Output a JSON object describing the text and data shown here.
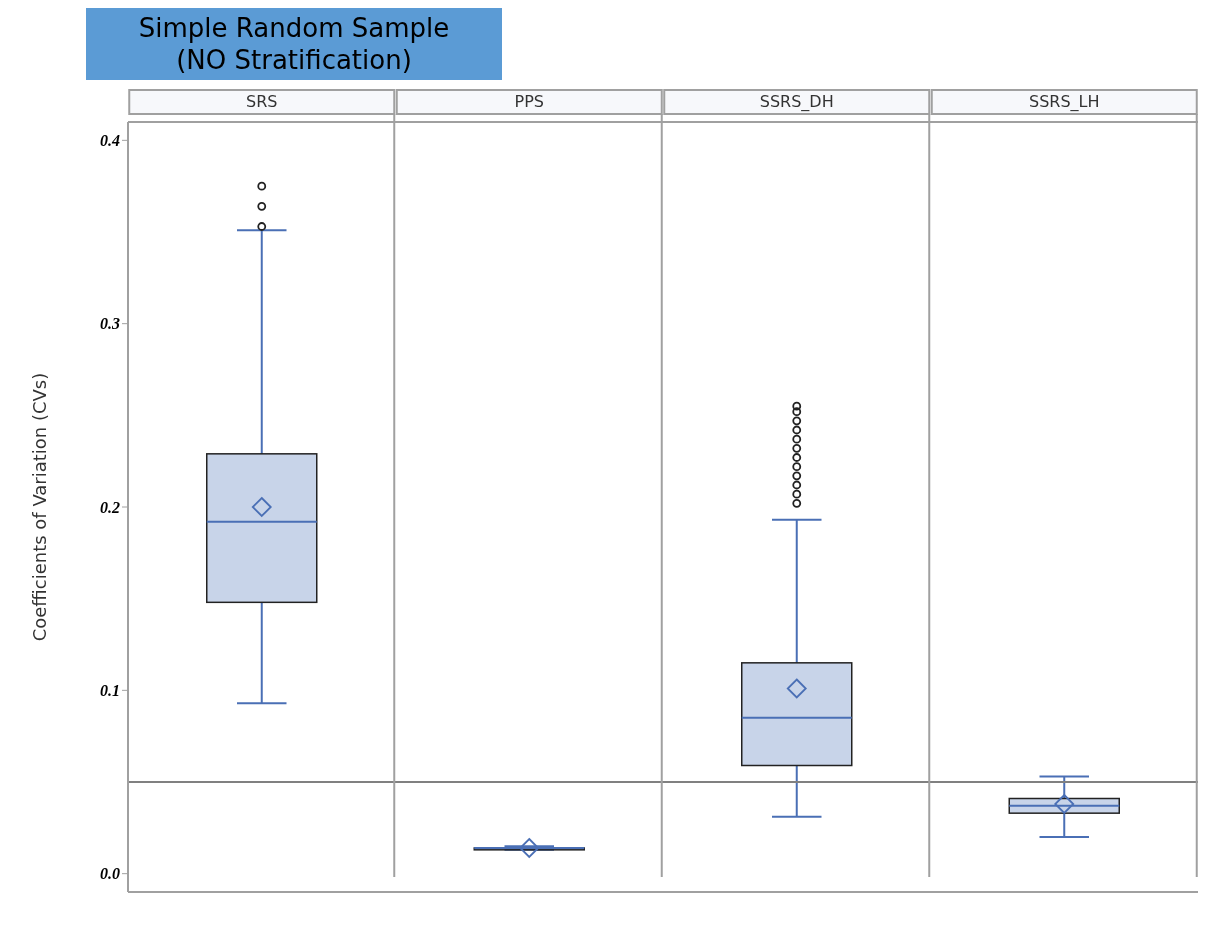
{
  "chart_data": {
    "type": "box",
    "title": "Simple Random Sample\n(NO Stratification)",
    "ylabel": "Coefficients of Variation (CVs)",
    "categories": [
      "SRS",
      "PPS",
      "SSRS_DH",
      "SSRS_LH"
    ],
    "color": "#4a6fb5",
    "boxes": [
      {
        "low": 0.093,
        "q1": 0.148,
        "median": 0.192,
        "q3": 0.229,
        "high": 0.351,
        "mean": 0.2,
        "outliers": [
          0.353,
          0.364,
          0.375
        ]
      },
      {
        "low": 0.013,
        "q1": 0.013,
        "median": 0.014,
        "q3": 0.014,
        "high": 0.015,
        "mean": 0.014
      },
      {
        "low": 0.031,
        "q1": 0.059,
        "median": 0.085,
        "q3": 0.115,
        "high": 0.193,
        "mean": 0.101,
        "outliers": [
          0.202,
          0.207,
          0.212,
          0.217,
          0.222,
          0.227,
          0.232,
          0.237,
          0.242,
          0.247,
          0.252,
          0.255
        ]
      },
      {
        "low": 0.02,
        "q1": 0.033,
        "median": 0.037,
        "q3": 0.041,
        "high": 0.053,
        "mean": 0.038
      }
    ],
    "ylim": [
      -0.01,
      0.41
    ],
    "yticks": [
      {
        "value": 0,
        "label": "0.0"
      },
      {
        "value": 0.1,
        "label": "0.1"
      },
      {
        "value": 0.2,
        "label": "0.2"
      },
      {
        "value": 0.3,
        "label": "0.3"
      },
      {
        "value": 0.4,
        "label": "0.4"
      }
    ],
    "ref_lines": [
      {
        "axis": "y",
        "value": 0.05,
        "color": "#808080"
      }
    ]
  }
}
